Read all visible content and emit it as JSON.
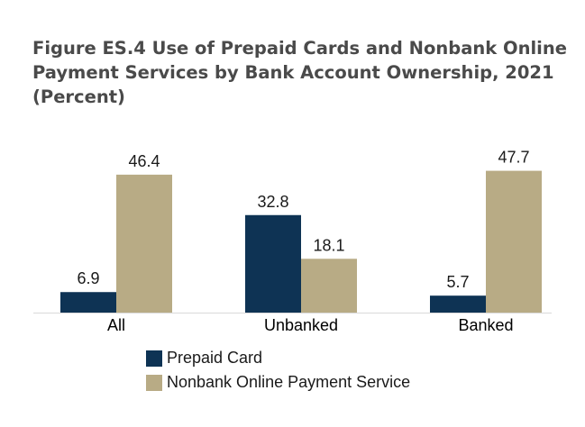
{
  "title_lines": [
    "Figure ES.4 Use of Prepaid Cards and Nonbank Online",
    "Payment Services by Bank Account Ownership, 2021",
    "(Percent)"
  ],
  "colors": {
    "prepaid": "#0e3354",
    "nonbank": "#b8ab85"
  },
  "chart_data": {
    "type": "bar",
    "title": "Figure ES.4 Use of Prepaid Cards and Nonbank Online Payment Services by Bank Account Ownership, 2021 (Percent)",
    "categories": [
      "All",
      "Unbanked",
      "Banked"
    ],
    "series": [
      {
        "name": "Prepaid Card",
        "values": [
          6.9,
          32.8,
          5.7
        ]
      },
      {
        "name": "Nonbank Online Payment Service",
        "values": [
          46.4,
          18.1,
          47.7
        ]
      }
    ],
    "ylim": [
      0,
      50
    ],
    "grid": false,
    "legend_position": "bottom"
  }
}
